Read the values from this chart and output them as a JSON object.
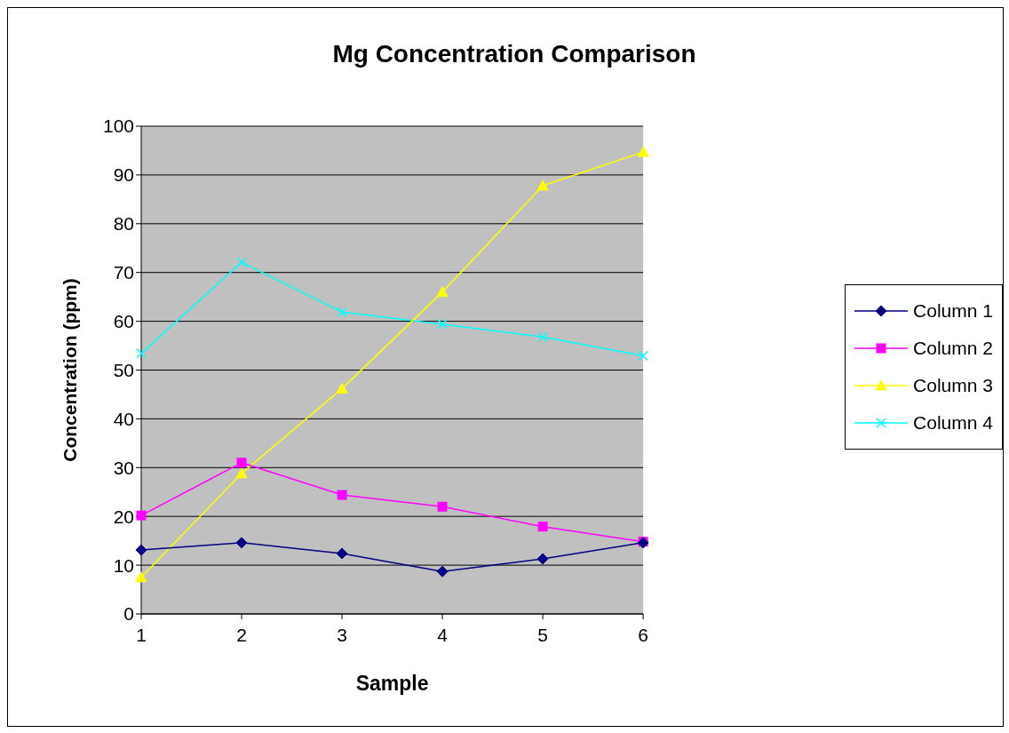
{
  "chart_data": {
    "type": "line",
    "title": "Mg Concentration Comparison",
    "xlabel": "Sample",
    "ylabel": "Concentration (ppm)",
    "categories": [
      "1",
      "2",
      "3",
      "4",
      "5",
      "6"
    ],
    "series": [
      {
        "name": "Column 1",
        "color": "#000080",
        "marker": "diamond",
        "values": [
          13.1,
          14.6,
          12.4,
          8.7,
          11.3,
          14.6
        ]
      },
      {
        "name": "Column 2",
        "color": "#ff00ff",
        "marker": "square",
        "values": [
          20.2,
          31,
          24.4,
          22,
          17.9,
          14.8
        ]
      },
      {
        "name": "Column 3",
        "color": "#ffff00",
        "marker": "triangle",
        "values": [
          7.5,
          28.8,
          46.2,
          66,
          87.8,
          94.7
        ]
      },
      {
        "name": "Column 4",
        "color": "#00ffff",
        "marker": "cross",
        "values": [
          53.4,
          72.1,
          61.9,
          59.4,
          56.8,
          52.9
        ]
      }
    ],
    "ylim": [
      0,
      100
    ],
    "yticks": [
      0,
      10,
      20,
      30,
      40,
      50,
      60,
      70,
      80,
      90,
      100
    ],
    "grid": "y",
    "legend": "right",
    "line_style": "solid"
  }
}
